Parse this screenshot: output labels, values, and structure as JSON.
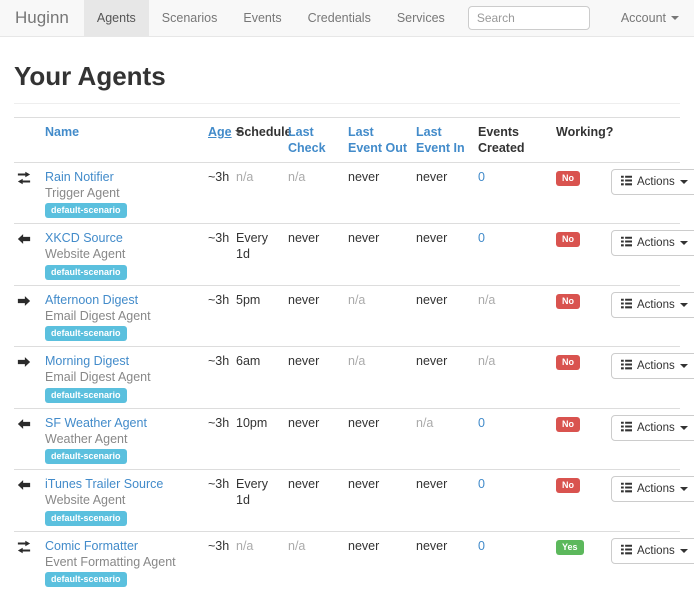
{
  "navbar": {
    "brand": "Huginn",
    "tabs": [
      {
        "label": "Agents",
        "active": true
      },
      {
        "label": "Scenarios",
        "active": false
      },
      {
        "label": "Events",
        "active": false
      },
      {
        "label": "Credentials",
        "active": false
      },
      {
        "label": "Services",
        "active": false
      }
    ],
    "search": {
      "placeholder": "Search"
    },
    "account": {
      "label": "Account"
    }
  },
  "page": {
    "title": "Your Agents"
  },
  "colors": {
    "link": "#428bca",
    "scenario_badge": "#5bc0de",
    "working_no": "#d9534f",
    "working_yes": "#5cb85c"
  },
  "table": {
    "headers": {
      "name": "Name",
      "age": "Age",
      "schedule": "Schedule",
      "last_check": "Last Check",
      "last_event_out": "Last Event Out",
      "last_event_in": "Last Event In",
      "events_created": "Events Created",
      "working": "Working?"
    },
    "sorted_column": "age",
    "rows": [
      {
        "icon": "exchange-arrows",
        "name": "Rain Notifier",
        "type": "Trigger Agent",
        "scenario": "default-scenario",
        "age": "~3h",
        "schedule": "n/a",
        "last_check": "n/a",
        "last_event_out": "never",
        "last_event_in": "never",
        "events_created": "0",
        "working": {
          "label": "No",
          "status": "no"
        },
        "actions_label": "Actions"
      },
      {
        "icon": "arrow-left",
        "name": "XKCD Source",
        "type": "Website Agent",
        "scenario": "default-scenario",
        "age": "~3h",
        "schedule": "Every 1d",
        "last_check": "never",
        "last_event_out": "never",
        "last_event_in": "never",
        "events_created": "0",
        "working": {
          "label": "No",
          "status": "no"
        },
        "actions_label": "Actions"
      },
      {
        "icon": "arrow-right",
        "name": "Afternoon Digest",
        "type": "Email Digest Agent",
        "scenario": "default-scenario",
        "age": "~3h",
        "schedule": "5pm",
        "last_check": "never",
        "last_event_out": "n/a",
        "last_event_in": "never",
        "events_created": "n/a",
        "working": {
          "label": "No",
          "status": "no"
        },
        "actions_label": "Actions"
      },
      {
        "icon": "arrow-right",
        "name": "Morning Digest",
        "type": "Email Digest Agent",
        "scenario": "default-scenario",
        "age": "~3h",
        "schedule": "6am",
        "last_check": "never",
        "last_event_out": "n/a",
        "last_event_in": "never",
        "events_created": "n/a",
        "working": {
          "label": "No",
          "status": "no"
        },
        "actions_label": "Actions"
      },
      {
        "icon": "arrow-left",
        "name": "SF Weather Agent",
        "type": "Weather Agent",
        "scenario": "default-scenario",
        "age": "~3h",
        "schedule": "10pm",
        "last_check": "never",
        "last_event_out": "never",
        "last_event_in": "n/a",
        "events_created": "0",
        "working": {
          "label": "No",
          "status": "no"
        },
        "actions_label": "Actions"
      },
      {
        "icon": "arrow-left",
        "name": "iTunes Trailer Source",
        "type": "Website Agent",
        "scenario": "default-scenario",
        "age": "~3h",
        "schedule": "Every 1d",
        "last_check": "never",
        "last_event_out": "never",
        "last_event_in": "never",
        "events_created": "0",
        "working": {
          "label": "No",
          "status": "no"
        },
        "actions_label": "Actions"
      },
      {
        "icon": "exchange-arrows",
        "name": "Comic Formatter",
        "type": "Event Formatting Agent",
        "scenario": "default-scenario",
        "age": "~3h",
        "schedule": "n/a",
        "last_check": "n/a",
        "last_event_out": "never",
        "last_event_in": "never",
        "events_created": "0",
        "working": {
          "label": "Yes",
          "status": "yes"
        },
        "actions_label": "Actions"
      }
    ]
  }
}
